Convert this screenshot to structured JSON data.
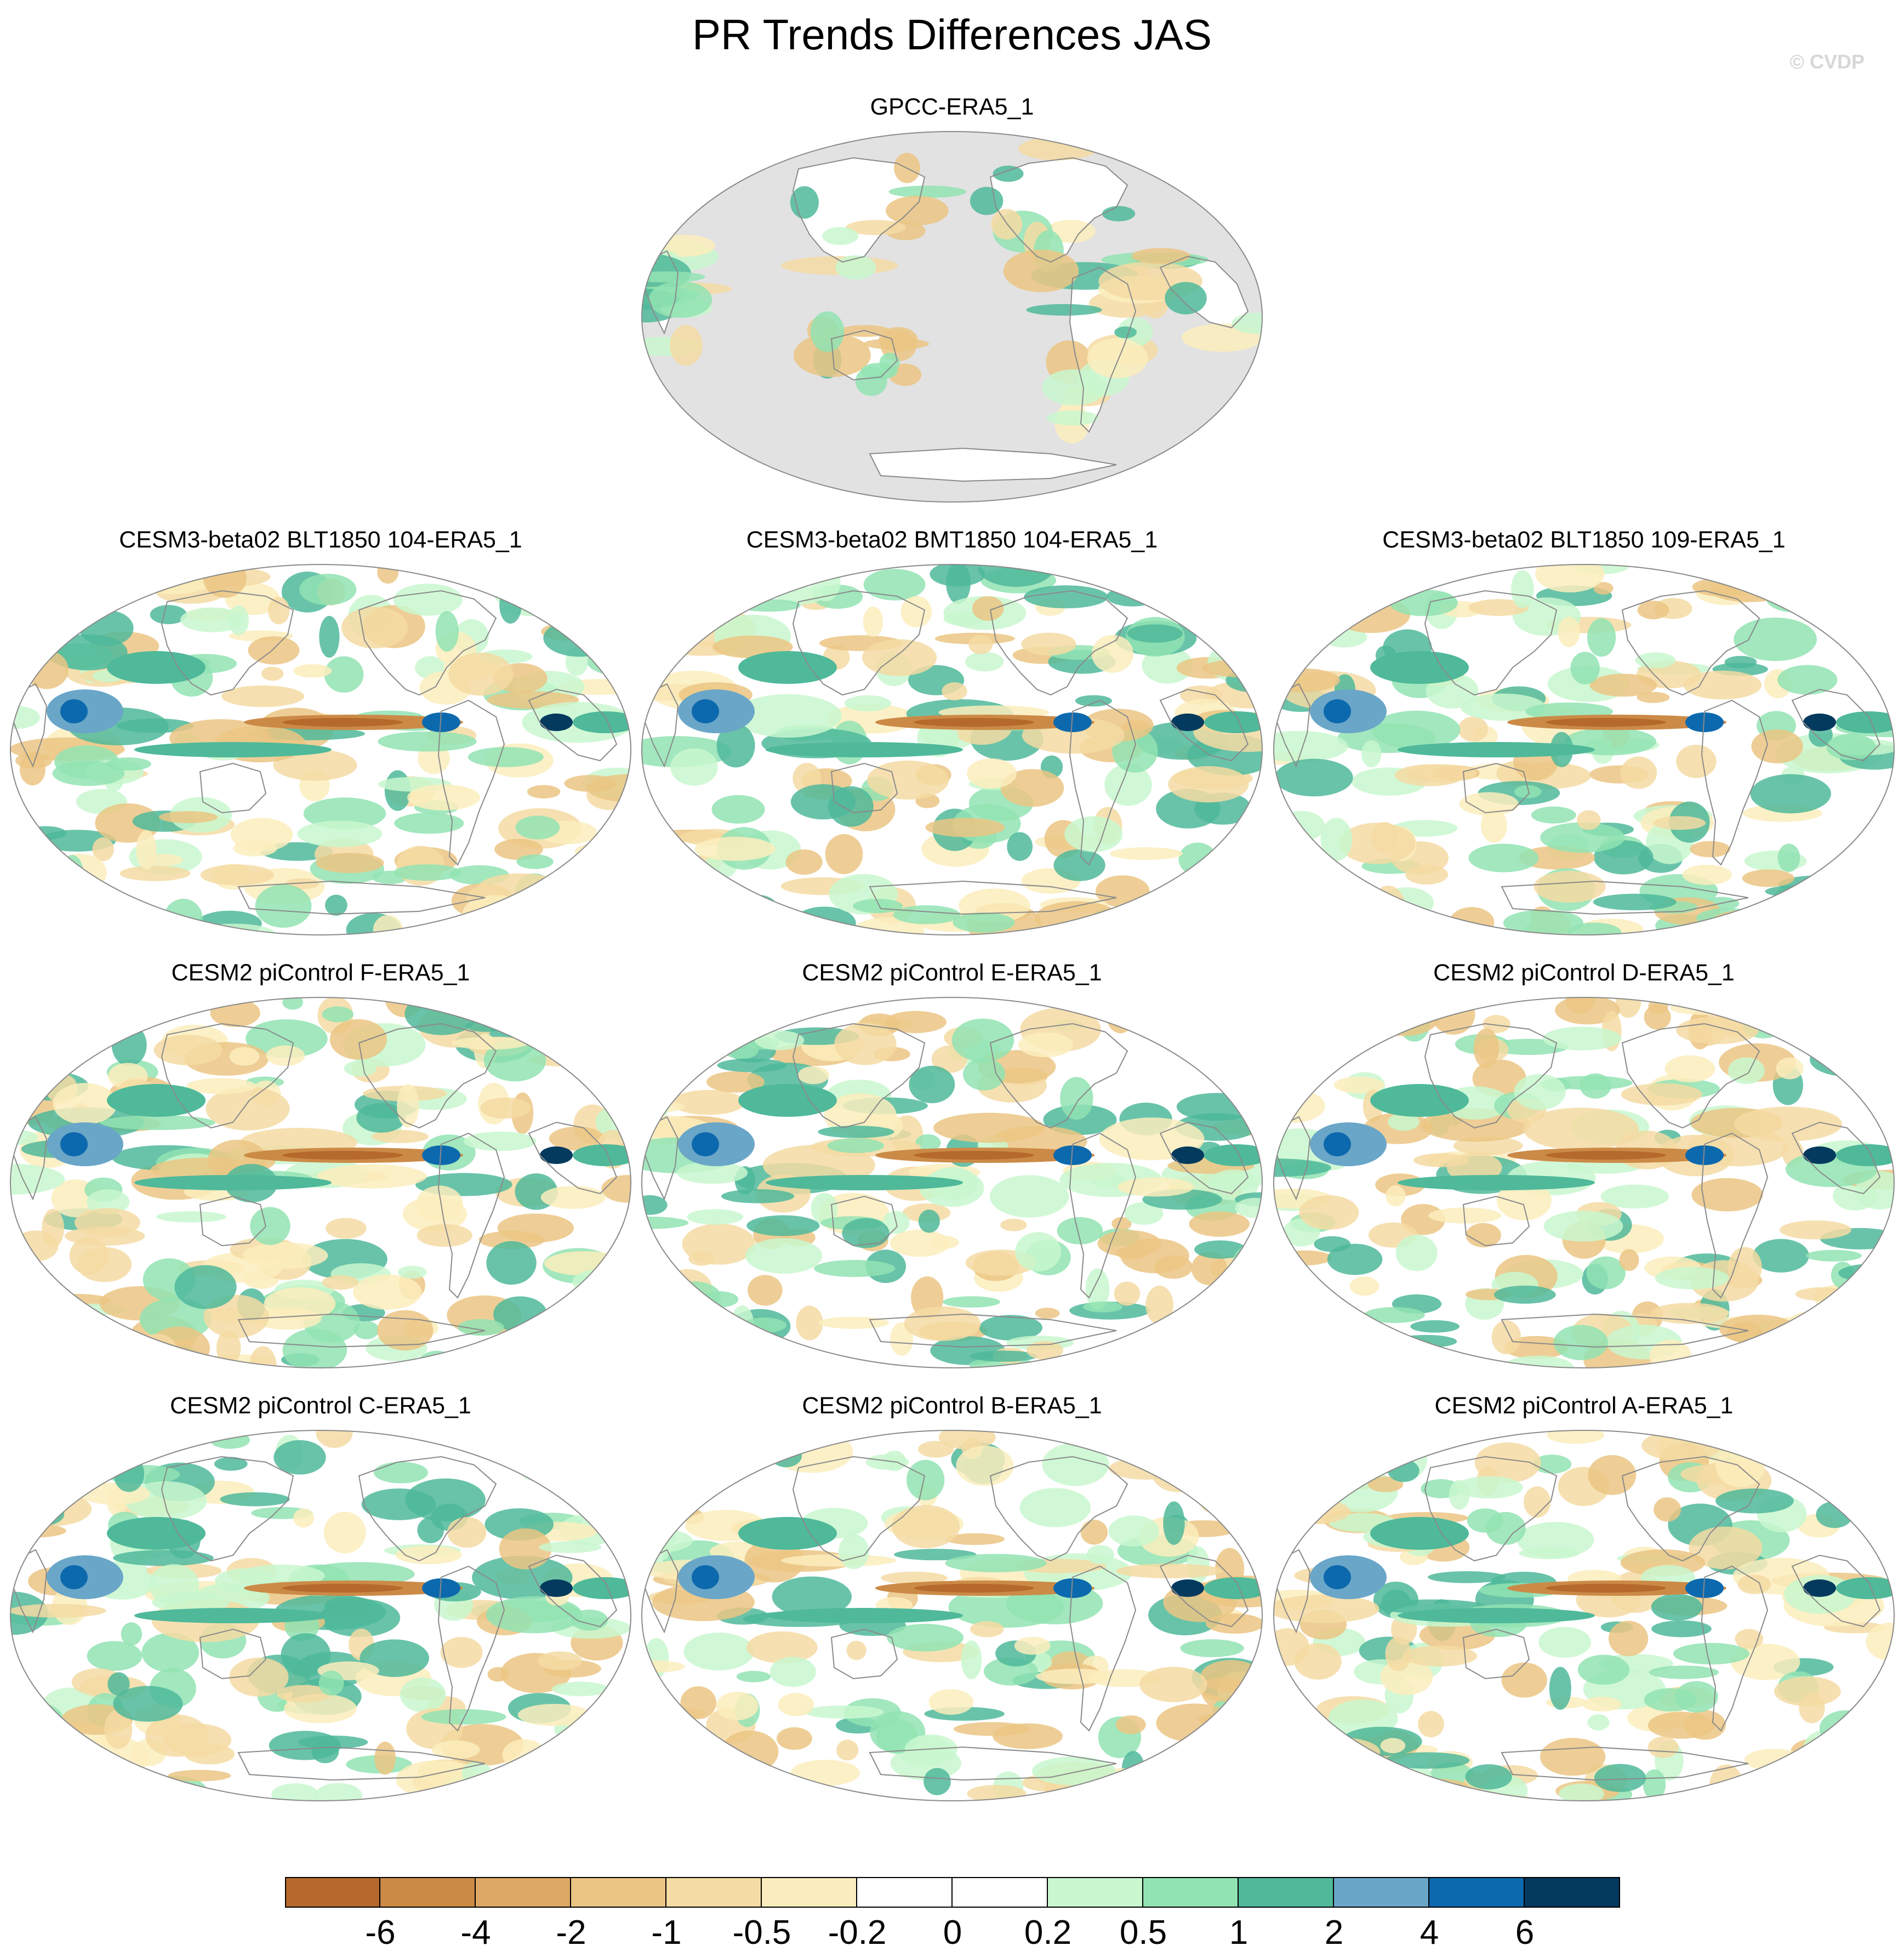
{
  "title": "PR Trends Differences JAS",
  "copyright": "© CVDP",
  "panels": [
    {
      "title": "GPCC-ERA5_1",
      "coverage": "land"
    },
    {
      "title": "CESM3-beta02 BLT1850 104-ERA5_1",
      "coverage": "global"
    },
    {
      "title": "CESM3-beta02 BMT1850 104-ERA5_1",
      "coverage": "global"
    },
    {
      "title": "CESM3-beta02 BLT1850 109-ERA5_1",
      "coverage": "global"
    },
    {
      "title": "CESM2 piControl F-ERA5_1",
      "coverage": "global"
    },
    {
      "title": "CESM2 piControl E-ERA5_1",
      "coverage": "global"
    },
    {
      "title": "CESM2 piControl D-ERA5_1",
      "coverage": "global"
    },
    {
      "title": "CESM2 piControl C-ERA5_1",
      "coverage": "global"
    },
    {
      "title": "CESM2 piControl B-ERA5_1",
      "coverage": "global"
    },
    {
      "title": "CESM2 piControl A-ERA5_1",
      "coverage": "global"
    }
  ],
  "colorbar": {
    "labels": [
      "-6",
      "-4",
      "-2",
      "-1",
      "-0.5",
      "-0.2",
      "0",
      "0.2",
      "0.5",
      "1",
      "2",
      "4",
      "6"
    ],
    "colors": [
      "#b5692b",
      "#cc8a47",
      "#dda765",
      "#ebc584",
      "#f4dba3",
      "#fbedbd",
      "#ffffff",
      "#ffffff",
      "#c9f7cf",
      "#92e3b3",
      "#4fb99a",
      "#6aa6c8",
      "#0d69ad",
      "#033a5e"
    ]
  },
  "map_style": {
    "missing_color": "#e2e2e2",
    "outline_color": "#8a8a8a",
    "coast_color": "#8a8a8a"
  }
}
